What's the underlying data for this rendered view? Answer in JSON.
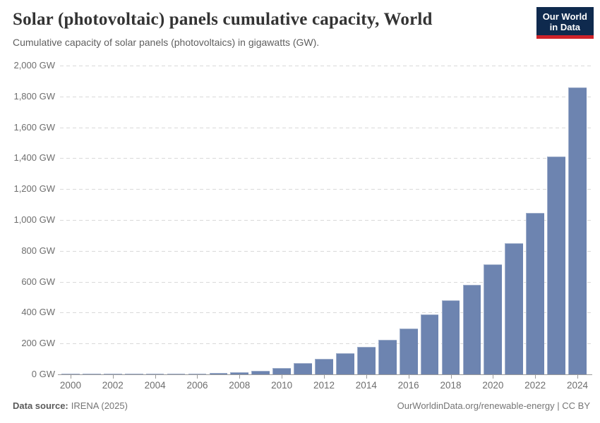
{
  "header": {
    "title": "Solar (photovoltaic) panels cumulative capacity, World",
    "subtitle": "Cumulative capacity of solar panels (photovoltaics) in gigawatts (GW).",
    "logo_line1": "Our World",
    "logo_line2": "in Data"
  },
  "chart_data": {
    "type": "bar",
    "title": "Solar (photovoltaic) panels cumulative capacity, World",
    "xlabel": "",
    "ylabel": "",
    "unit": "GW",
    "categories": [
      2000,
      2001,
      2002,
      2003,
      2004,
      2005,
      2006,
      2007,
      2008,
      2009,
      2010,
      2011,
      2012,
      2013,
      2014,
      2015,
      2016,
      2017,
      2018,
      2019,
      2020,
      2021,
      2022,
      2023,
      2024
    ],
    "values": [
      1.2,
      1.5,
      1.9,
      2.5,
      3.4,
      5,
      6.5,
      9,
      15.3,
      22.9,
      40.1,
      73,
      101.5,
      136.7,
      176.7,
      222.2,
      295.7,
      389.4,
      480.6,
      580.4,
      710.3,
      849.5,
      1047.5,
      1410,
      1860
    ],
    "ylim": [
      0,
      2000
    ],
    "ytick_step": 200,
    "ytick_suffix": " GW",
    "xtick_years": [
      2000,
      2002,
      2004,
      2006,
      2008,
      2010,
      2012,
      2014,
      2016,
      2018,
      2020,
      2022,
      2024
    ],
    "legend": "none",
    "grid": "horizontal-dashed",
    "bar_color": "#6d84b0"
  },
  "footer": {
    "source_label": "Data source:",
    "source_value": "IRENA (2025)",
    "credit_link": "OurWorldinData.org/renewable-energy",
    "credit_separator": " | ",
    "credit_license": "CC BY"
  },
  "colors": {
    "bar": "#6d84b0",
    "gridline": "#d9d9d9",
    "axis": "#9a9a9a",
    "tick_label": "#6e6e6e",
    "title": "#333333",
    "subtitle": "#5f5f5f",
    "footer": "#757575",
    "logo_bg": "#0f2a4e",
    "logo_stripe": "#cf2229"
  }
}
